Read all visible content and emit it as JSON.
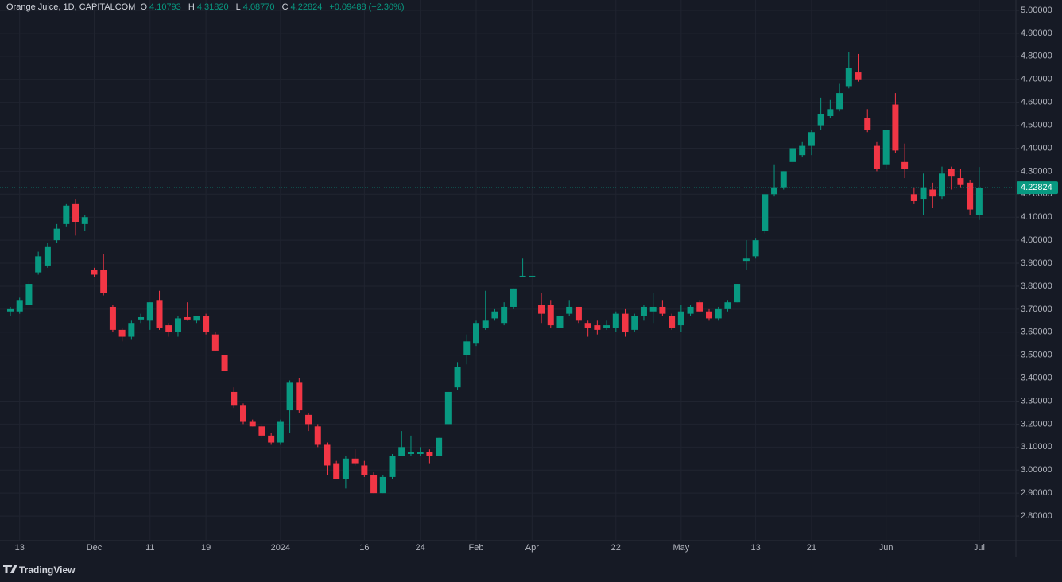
{
  "chart_data": {
    "type": "candlestick",
    "title": "Orange Juice, 1D, CAPITALCOM",
    "ohlc_legend": {
      "o_label": "O",
      "o": "4.10793",
      "h_label": "H",
      "h": "4.31820",
      "l_label": "L",
      "l": "4.08770",
      "c_label": "C",
      "c": "4.22824",
      "change": "+0.09488 (+2.30%)"
    },
    "last_price": {
      "value": 4.22824,
      "label": "4.22824"
    },
    "up_color": "#089981",
    "down_color": "#f23645",
    "grid": true,
    "categories": [
      null,
      "13",
      null,
      null,
      null,
      null,
      null,
      null,
      null,
      "Dec",
      null,
      null,
      null,
      null,
      null,
      "11",
      null,
      null,
      null,
      null,
      null,
      "19",
      null,
      null,
      null,
      null,
      null,
      null,
      null,
      "2024",
      null,
      null,
      null,
      null,
      null,
      null,
      null,
      null,
      "16",
      null,
      null,
      null,
      null,
      null,
      "24",
      null,
      null,
      null,
      null,
      null,
      "Feb",
      null,
      null,
      null,
      null,
      null,
      "Apr",
      null,
      null,
      null,
      null,
      null,
      null,
      null,
      null,
      "22",
      null,
      null,
      null,
      null,
      null,
      null,
      "May",
      null,
      null,
      null,
      null,
      null,
      null,
      null,
      "13",
      null,
      null,
      null,
      null,
      null,
      "21",
      null,
      null,
      null,
      null,
      null,
      null,
      null,
      "Jun",
      null,
      null,
      null,
      null,
      null,
      null,
      null,
      null,
      null,
      "Jul"
    ],
    "open": [
      3.69,
      3.69,
      3.72,
      3.86,
      3.89,
      4.0,
      4.07,
      4.16,
      4.07,
      3.87,
      3.87,
      3.71,
      3.61,
      3.58,
      3.655,
      3.65,
      3.74,
      3.63,
      3.6,
      3.665,
      3.65,
      3.67,
      3.59,
      3.5,
      3.34,
      3.28,
      3.21,
      3.19,
      3.15,
      3.12,
      3.26,
      3.38,
      3.24,
      3.19,
      3.11,
      3.03,
      2.96,
      3.05,
      3.02,
      2.98,
      2.9,
      2.97,
      3.06,
      3.07,
      3.07,
      3.08,
      3.06,
      3.2,
      3.36,
      3.5,
      3.55,
      3.62,
      3.66,
      3.64,
      3.71,
      3.84,
      3.845,
      3.72,
      3.72,
      3.62,
      3.68,
      3.71,
      3.64,
      3.63,
      3.62,
      3.62,
      3.68,
      3.61,
      3.67,
      3.69,
      3.71,
      3.67,
      3.63,
      3.68,
      3.73,
      3.69,
      3.66,
      3.7,
      3.73,
      3.91,
      3.93,
      4.04,
      4.2,
      4.23,
      4.34,
      4.37,
      4.41,
      4.5,
      4.54,
      4.57,
      4.67,
      4.73,
      4.53,
      4.41,
      4.33,
      4.59,
      4.34,
      4.2,
      4.18,
      4.22,
      4.19,
      4.31,
      4.27,
      4.25,
      4.10793
    ],
    "high": [
      3.71,
      3.75,
      3.82,
      3.95,
      3.99,
      4.07,
      4.16,
      4.18,
      4.11,
      3.88,
      3.94,
      3.72,
      3.62,
      3.65,
      3.68,
      3.73,
      3.78,
      3.64,
      3.67,
      3.73,
      3.67,
      3.68,
      3.6,
      3.5,
      3.36,
      3.29,
      3.22,
      3.2,
      3.16,
      3.22,
      3.39,
      3.4,
      3.25,
      3.2,
      3.12,
      3.04,
      3.06,
      3.09,
      3.04,
      2.99,
      2.98,
      3.07,
      3.17,
      3.15,
      3.1,
      3.09,
      3.14,
      3.34,
      3.47,
      3.59,
      3.65,
      3.78,
      3.7,
      3.73,
      3.79,
      3.92,
      3.845,
      3.77,
      3.74,
      3.68,
      3.74,
      3.71,
      3.65,
      3.65,
      3.65,
      3.69,
      3.7,
      3.68,
      3.72,
      3.77,
      3.74,
      3.68,
      3.72,
      3.72,
      3.74,
      3.7,
      3.71,
      3.74,
      3.81,
      4.0,
      4.01,
      4.2,
      4.33,
      4.3,
      4.42,
      4.43,
      4.48,
      4.62,
      4.61,
      4.68,
      4.82,
      4.81,
      4.57,
      4.43,
      4.48,
      4.64,
      4.42,
      4.23,
      4.29,
      4.25,
      4.32,
      4.32,
      4.31,
      4.26,
      4.3182
    ],
    "low": [
      3.67,
      3.68,
      3.72,
      3.85,
      3.88,
      3.99,
      4.06,
      4.02,
      4.04,
      3.84,
      3.76,
      3.6,
      3.56,
      3.57,
      3.64,
      3.61,
      3.61,
      3.58,
      3.58,
      3.65,
      3.64,
      3.59,
      3.52,
      3.43,
      3.27,
      3.2,
      3.19,
      3.14,
      3.11,
      3.11,
      3.16,
      3.25,
      3.17,
      3.1,
      2.98,
      2.96,
      2.92,
      3.02,
      2.97,
      2.9,
      2.9,
      2.96,
      3.06,
      3.06,
      3.06,
      3.03,
      3.06,
      3.2,
      3.35,
      3.46,
      3.54,
      3.61,
      3.65,
      3.63,
      3.7,
      3.84,
      3.845,
      3.64,
      3.62,
      3.61,
      3.67,
      3.64,
      3.58,
      3.59,
      3.61,
      3.6,
      3.58,
      3.6,
      3.65,
      3.64,
      3.67,
      3.61,
      3.6,
      3.67,
      3.69,
      3.65,
      3.65,
      3.69,
      3.73,
      3.87,
      3.92,
      4.03,
      4.19,
      4.22,
      4.33,
      4.36,
      4.37,
      4.48,
      4.53,
      4.56,
      4.66,
      4.69,
      4.47,
      4.3,
      4.31,
      4.38,
      4.27,
      4.16,
      4.11,
      4.14,
      4.18,
      4.22,
      4.23,
      4.11,
      4.0877
    ],
    "close": [
      3.7,
      3.74,
      3.81,
      3.93,
      3.97,
      4.05,
      4.15,
      4.08,
      4.1,
      3.85,
      3.77,
      3.61,
      3.58,
      3.64,
      3.665,
      3.73,
      3.62,
      3.6,
      3.66,
      3.655,
      3.67,
      3.6,
      3.52,
      3.43,
      3.28,
      3.21,
      3.19,
      3.15,
      3.12,
      3.21,
      3.38,
      3.26,
      3.2,
      3.11,
      3.02,
      2.96,
      3.05,
      3.03,
      2.98,
      2.9,
      2.97,
      3.06,
      3.1,
      3.08,
      3.08,
      3.06,
      3.14,
      3.34,
      3.45,
      3.56,
      3.64,
      3.65,
      3.69,
      3.71,
      3.79,
      3.845,
      3.845,
      3.68,
      3.63,
      3.67,
      3.71,
      3.65,
      3.62,
      3.61,
      3.63,
      3.68,
      3.6,
      3.67,
      3.71,
      3.71,
      3.68,
      3.62,
      3.69,
      3.71,
      3.69,
      3.66,
      3.7,
      3.73,
      3.81,
      3.92,
      4.0,
      4.2,
      4.23,
      4.3,
      4.4,
      4.41,
      4.47,
      4.55,
      4.57,
      4.64,
      4.75,
      4.7,
      4.48,
      4.31,
      4.48,
      4.39,
      4.31,
      4.17,
      4.23,
      4.19,
      4.29,
      4.28,
      4.24,
      4.13336,
      4.22824
    ],
    "ylim": [
      2.693,
      5.045
    ],
    "yticks": [
      {
        "value": 2.8,
        "label": "2.80000"
      },
      {
        "value": 2.9,
        "label": "2.90000"
      },
      {
        "value": 3.0,
        "label": "3.00000"
      },
      {
        "value": 3.1,
        "label": "3.10000"
      },
      {
        "value": 3.2,
        "label": "3.20000"
      },
      {
        "value": 3.3,
        "label": "3.30000"
      },
      {
        "value": 3.4,
        "label": "3.40000"
      },
      {
        "value": 3.5,
        "label": "3.50000"
      },
      {
        "value": 3.6,
        "label": "3.60000"
      },
      {
        "value": 3.7,
        "label": "3.70000"
      },
      {
        "value": 3.8,
        "label": "3.80000"
      },
      {
        "value": 3.9,
        "label": "3.90000"
      },
      {
        "value": 4.0,
        "label": "4.00000"
      },
      {
        "value": 4.1,
        "label": "4.10000"
      },
      {
        "value": 4.2,
        "label": "4.20000"
      },
      {
        "value": 4.3,
        "label": "4.30000"
      },
      {
        "value": 4.4,
        "label": "4.40000"
      },
      {
        "value": 4.5,
        "label": "4.50000"
      },
      {
        "value": 4.6,
        "label": "4.60000"
      },
      {
        "value": 4.7,
        "label": "4.70000"
      },
      {
        "value": 4.8,
        "label": "4.80000"
      },
      {
        "value": 4.9,
        "label": "4.90000"
      },
      {
        "value": 5.0,
        "label": "5.00000"
      }
    ]
  }
}
